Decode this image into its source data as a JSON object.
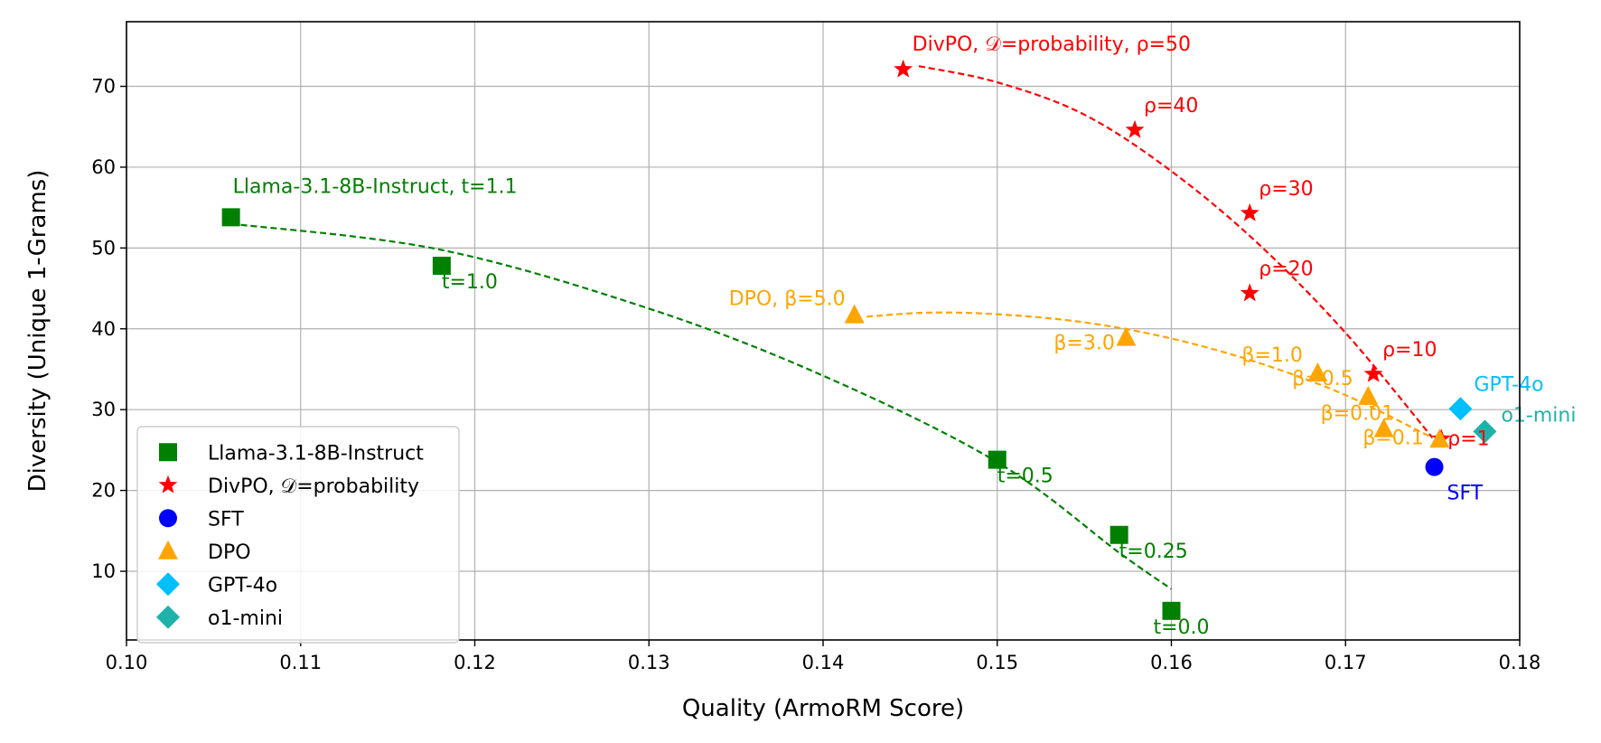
{
  "chart_data": {
    "type": "scatter",
    "title": "",
    "xlabel": "Quality (ArmoRM Score)",
    "ylabel": "Diversity (Unique 1-Grams)",
    "xlim": [
      0.1,
      0.18
    ],
    "ylim": [
      1.5,
      78
    ],
    "xticks": [
      0.1,
      0.11,
      0.12,
      0.13,
      0.14,
      0.15,
      0.16,
      0.17,
      0.18
    ],
    "xtick_labels": [
      "0.10",
      "0.11",
      "0.12",
      "0.13",
      "0.14",
      "0.15",
      "0.16",
      "0.17",
      "0.18"
    ],
    "yticks": [
      10,
      20,
      30,
      40,
      50,
      60,
      70
    ],
    "ytick_labels": [
      "10",
      "20",
      "30",
      "40",
      "50",
      "60",
      "70"
    ],
    "grid": true,
    "legend_position": "bottom-left",
    "series": [
      {
        "name": "Llama-3.1-8B-Instruct",
        "marker": "square",
        "color": "#008000",
        "points": [
          {
            "x": 0.106,
            "y": 53.8,
            "label": "Llama-3.1-8B-Instruct, t=1.1"
          },
          {
            "x": 0.1181,
            "y": 47.8,
            "label": "t=1.0"
          },
          {
            "x": 0.15,
            "y": 23.8,
            "label": "t=0.5"
          },
          {
            "x": 0.157,
            "y": 14.5,
            "label": "t=0.25"
          },
          {
            "x": 0.16,
            "y": 5.1,
            "label": "t=0.0"
          }
        ],
        "trend": [
          [
            0.106,
            53.0
          ],
          [
            0.118,
            49.8
          ],
          [
            0.13,
            42.5
          ],
          [
            0.14,
            34.2
          ],
          [
            0.15,
            23.5
          ],
          [
            0.157,
            12.3
          ],
          [
            0.16,
            7.8
          ]
        ]
      },
      {
        "name": "DivPO, 𝒟=probability",
        "marker": "star",
        "color": "#ff0000",
        "points": [
          {
            "x": 0.1446,
            "y": 72.1,
            "label": "DivPO, 𝒟=probability, ρ=50"
          },
          {
            "x": 0.1579,
            "y": 64.6,
            "label": "ρ=40"
          },
          {
            "x": 0.1645,
            "y": 54.3,
            "label": "ρ=30"
          },
          {
            "x": 0.1645,
            "y": 44.4,
            "label": "ρ=20"
          },
          {
            "x": 0.1716,
            "y": 34.4,
            "label": "ρ=10"
          },
          {
            "x": 0.1755,
            "y": 26.4,
            "label": "ρ=1"
          }
        ],
        "trend": [
          [
            0.1455,
            72.5
          ],
          [
            0.15,
            70.5
          ],
          [
            0.155,
            66.5
          ],
          [
            0.16,
            59.5
          ],
          [
            0.165,
            50.5
          ],
          [
            0.17,
            39.5
          ],
          [
            0.175,
            26.5
          ]
        ]
      },
      {
        "name": "SFT",
        "marker": "circle",
        "color": "#0000ff",
        "points": [
          {
            "x": 0.1751,
            "y": 22.9,
            "label": "SFT"
          }
        ]
      },
      {
        "name": "DPO",
        "marker": "triangle",
        "color": "#ffa500",
        "points": [
          {
            "x": 0.1418,
            "y": 41.7,
            "label": "DPO, β=5.0"
          },
          {
            "x": 0.1574,
            "y": 38.9,
            "label": "β=3.0"
          },
          {
            "x": 0.1684,
            "y": 34.5,
            "label": "β=1.0"
          },
          {
            "x": 0.1713,
            "y": 31.6,
            "label": "β=0.5"
          },
          {
            "x": 0.1722,
            "y": 27.6,
            "label": "β=0.01"
          },
          {
            "x": 0.1754,
            "y": 26.3,
            "label": "β=0.1"
          }
        ],
        "trend": [
          [
            0.1425,
            41.5
          ],
          [
            0.146,
            42.0
          ],
          [
            0.15,
            41.8
          ],
          [
            0.155,
            40.8
          ],
          [
            0.16,
            38.8
          ],
          [
            0.165,
            35.8
          ],
          [
            0.17,
            31.8
          ],
          [
            0.175,
            26.5
          ]
        ]
      },
      {
        "name": "GPT-4o",
        "marker": "diamond",
        "color": "#00bfff",
        "points": [
          {
            "x": 0.1766,
            "y": 30.1,
            "label": "GPT-4o"
          }
        ]
      },
      {
        "name": "o1-mini",
        "marker": "diamond",
        "color": "#20b2aa",
        "points": [
          {
            "x": 0.178,
            "y": 27.3,
            "label": "o1-mini"
          }
        ]
      }
    ]
  }
}
